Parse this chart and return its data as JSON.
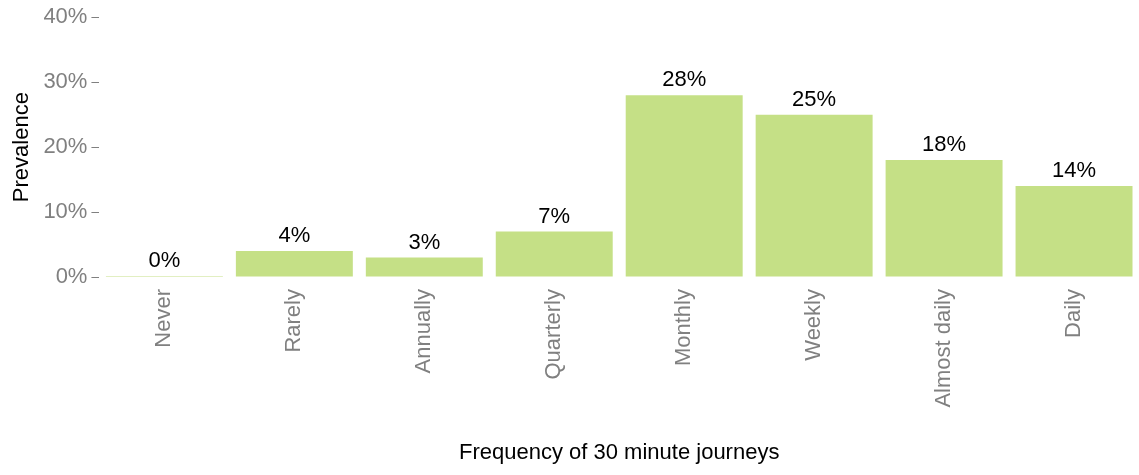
{
  "chart_data": {
    "type": "bar",
    "xlabel": "Frequency of 30 minute journeys",
    "ylabel": "Prevalence",
    "categories": [
      "Never",
      "Rarely",
      "Annually",
      "Quarterly",
      "Monthly",
      "Weekly",
      "Almost daily",
      "Daily"
    ],
    "values": [
      0,
      4,
      3,
      7,
      28,
      25,
      18,
      14
    ],
    "value_labels": [
      "0%",
      "4%",
      "3%",
      "7%",
      "28%",
      "25%",
      "18%",
      "14%"
    ],
    "color": "#c5e086",
    "ylim": [
      0,
      40
    ],
    "yticks": [
      {
        "value": 0,
        "label": "0%"
      },
      {
        "value": 10,
        "label": "10%"
      },
      {
        "value": 20,
        "label": "20%"
      },
      {
        "value": 30,
        "label": "30%"
      },
      {
        "value": 40,
        "label": "40%"
      }
    ],
    "grid": false,
    "legend": false
  }
}
